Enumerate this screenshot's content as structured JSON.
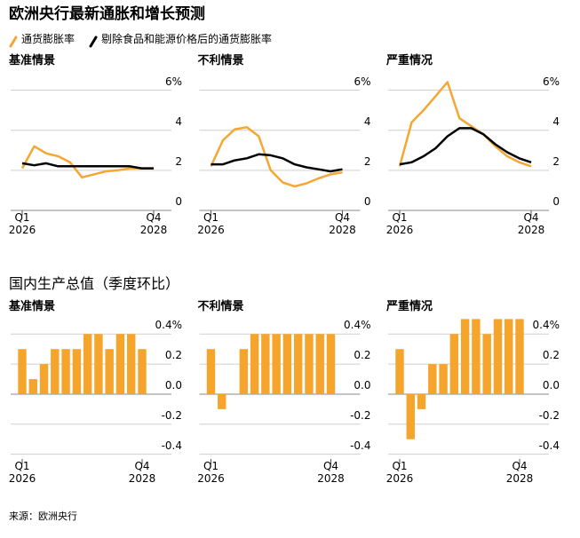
{
  "title": "欧洲央行最新通胀和增长预测",
  "section_title": "国内生产总值（季度环比）",
  "source": "来源：欧洲央行",
  "chart_data": [
    {
      "type": "line",
      "title": "基准情景",
      "categories": [
        "Q1\n2026",
        null,
        null,
        null,
        null,
        null,
        null,
        null,
        null,
        null,
        null,
        "Q4\n2028"
      ],
      "series": [
        {
          "name": "通货膨胀率",
          "color": "#f5a633",
          "values": [
            2.1,
            3.2,
            2.85,
            2.7,
            2.4,
            1.65,
            1.8,
            1.95,
            2.0,
            2.1,
            2.1,
            2.1
          ]
        },
        {
          "name": "剔除食品和能源价格后的通货膨胀率",
          "color": "#000000",
          "values": [
            2.35,
            2.25,
            2.35,
            2.2,
            2.2,
            2.2,
            2.2,
            2.2,
            2.2,
            2.2,
            2.1,
            2.1
          ]
        }
      ],
      "ylim": [
        0,
        6.6
      ],
      "yticks": [
        0,
        2,
        4,
        {
          "value": 6,
          "label": "6%"
        }
      ],
      "grid": true
    },
    {
      "type": "line",
      "title": "不利情景",
      "categories": [
        "Q1\n2026",
        null,
        null,
        null,
        null,
        null,
        null,
        null,
        null,
        null,
        null,
        "Q4\n2028"
      ],
      "series": [
        {
          "color": "#f5a633",
          "values": [
            2.2,
            3.5,
            4.05,
            4.15,
            3.7,
            2.0,
            1.4,
            1.2,
            1.35,
            1.6,
            1.8,
            1.9
          ]
        },
        {
          "color": "#000000",
          "values": [
            2.3,
            2.3,
            2.5,
            2.6,
            2.8,
            2.75,
            2.6,
            2.3,
            2.15,
            2.05,
            1.95,
            2.05
          ]
        }
      ],
      "ylim": [
        0,
        6.6
      ],
      "yticks": [
        0,
        2,
        4,
        {
          "value": 6,
          "label": "6%"
        }
      ],
      "grid": true
    },
    {
      "type": "line",
      "title": "严重情况",
      "categories": [
        "Q1\n2026",
        null,
        null,
        null,
        null,
        null,
        null,
        null,
        null,
        null,
        null,
        "Q4\n2028"
      ],
      "series": [
        {
          "color": "#f5a633",
          "values": [
            2.2,
            4.4,
            5.0,
            5.7,
            6.4,
            4.6,
            4.2,
            3.8,
            3.2,
            2.7,
            2.4,
            2.2
          ]
        },
        {
          "color": "#000000",
          "values": [
            2.3,
            2.4,
            2.7,
            3.1,
            3.7,
            4.1,
            4.1,
            3.8,
            3.3,
            2.9,
            2.6,
            2.4
          ]
        }
      ],
      "ylim": [
        0,
        6.6
      ],
      "yticks": [
        0,
        2,
        4,
        {
          "value": 6,
          "label": "6%"
        }
      ],
      "grid": true
    },
    {
      "type": "bar",
      "title": "基准情景",
      "categories": [
        "Q1\n2026",
        null,
        null,
        null,
        null,
        null,
        null,
        null,
        null,
        null,
        null,
        "Q4\n2028"
      ],
      "values": [
        0.3,
        0.1,
        0.2,
        0.3,
        0.3,
        0.3,
        0.4,
        0.4,
        0.3,
        0.4,
        0.4,
        0.3
      ],
      "color": "#f5a42c",
      "ylim": [
        -0.42,
        0.52
      ],
      "yticks": [
        -0.4,
        -0.2,
        {
          "value": 0,
          "label": "0.0"
        },
        0.2,
        {
          "value": 0.4,
          "label": "0.4%"
        }
      ],
      "grid": true
    },
    {
      "type": "bar",
      "title": "不利情景",
      "categories": [
        "Q1\n2026",
        null,
        null,
        null,
        null,
        null,
        null,
        null,
        null,
        null,
        null,
        "Q4\n2028"
      ],
      "values": [
        0.3,
        -0.1,
        0,
        0.3,
        0.4,
        0.4,
        0.4,
        0.4,
        0.4,
        0.4,
        0.4,
        0.4
      ],
      "color": "#f5a42c",
      "ylim": [
        -0.42,
        0.52
      ],
      "yticks": [
        -0.4,
        -0.2,
        {
          "value": 0,
          "label": "0.0"
        },
        0.2,
        {
          "value": 0.4,
          "label": "0.4%"
        }
      ],
      "grid": true
    },
    {
      "type": "bar",
      "title": "严重情况",
      "categories": [
        "Q1\n2026",
        null,
        null,
        null,
        null,
        null,
        null,
        null,
        null,
        null,
        null,
        "Q4\n2028"
      ],
      "values": [
        0.3,
        -0.3,
        -0.1,
        0.2,
        0.2,
        0.4,
        0.5,
        0.5,
        0.4,
        0.5,
        0.5,
        0.5
      ],
      "color": "#f5a42c",
      "ylim": [
        -0.42,
        0.52
      ],
      "yticks": [
        -0.4,
        -0.2,
        {
          "value": 0,
          "label": "0.0"
        },
        0.2,
        {
          "value": 0.4,
          "label": "0.4%"
        }
      ],
      "grid": true
    }
  ]
}
